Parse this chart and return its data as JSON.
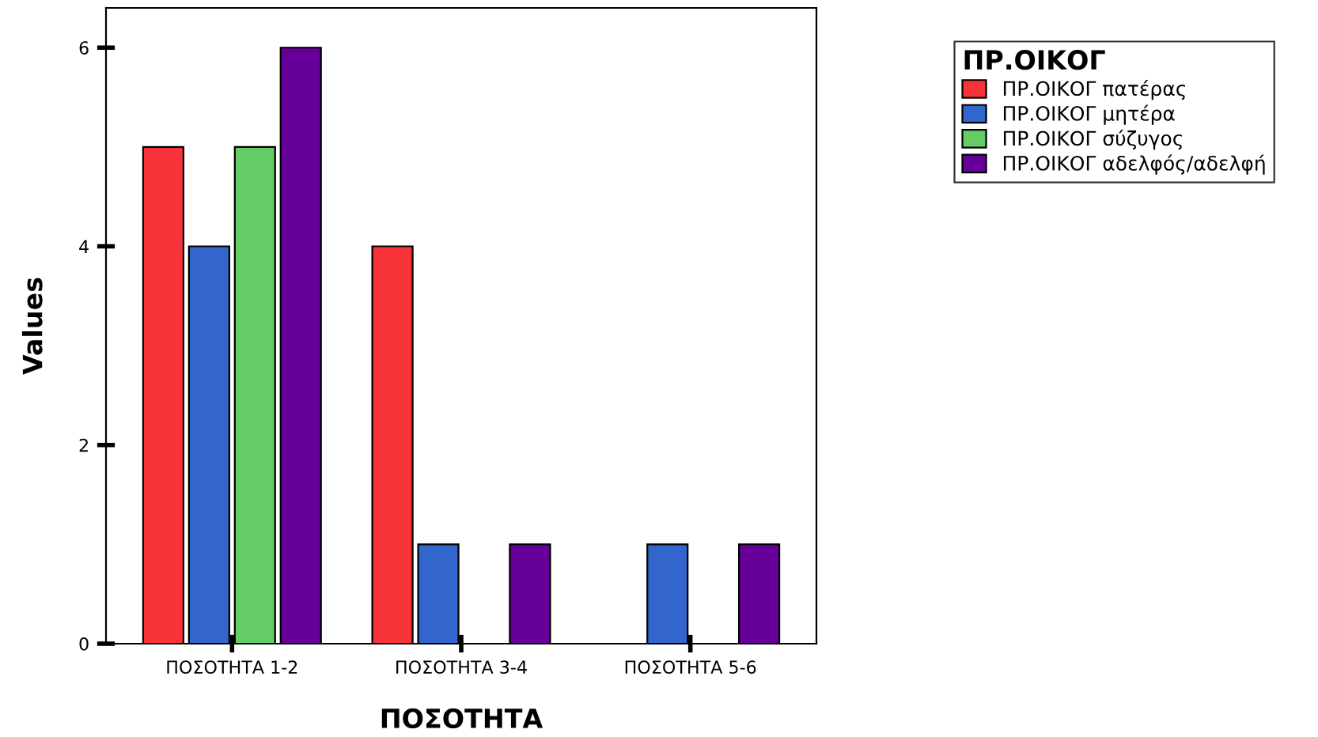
{
  "chart_data": {
    "type": "bar",
    "xlabel": "ΠΟΣΟΤΗΤΑ",
    "ylabel": "Values",
    "legend_title": "ΠΡ.ΟΙΚΟΓ",
    "categories": [
      "ΠΟΣΟΤΗΤΑ 1-2",
      "ΠΟΣΟΤΗΤΑ 3-4",
      "ΠΟΣΟΤΗΤΑ 5-6"
    ],
    "series": [
      {
        "name": "ΠΡ.ΟΙΚΟΓ πατέρας",
        "color": "#f8333a",
        "values": [
          5,
          4,
          null
        ]
      },
      {
        "name": "ΠΡ.ΟΙΚΟΓ μητέρα",
        "color": "#3366cc",
        "values": [
          4,
          1,
          1
        ]
      },
      {
        "name": "ΠΡ.ΟΙΚΟΓ σύζυγος",
        "color": "#66cc66",
        "values": [
          5,
          null,
          null
        ]
      },
      {
        "name": "ΠΡ.ΟΙΚΟΓ αδελφός/αδελφή",
        "color": "#660099",
        "values": [
          6,
          1,
          1
        ]
      }
    ],
    "ylim": [
      0,
      6.4
    ],
    "yticks": [
      0,
      2,
      4,
      6
    ],
    "grid": false,
    "legend": "top right"
  }
}
